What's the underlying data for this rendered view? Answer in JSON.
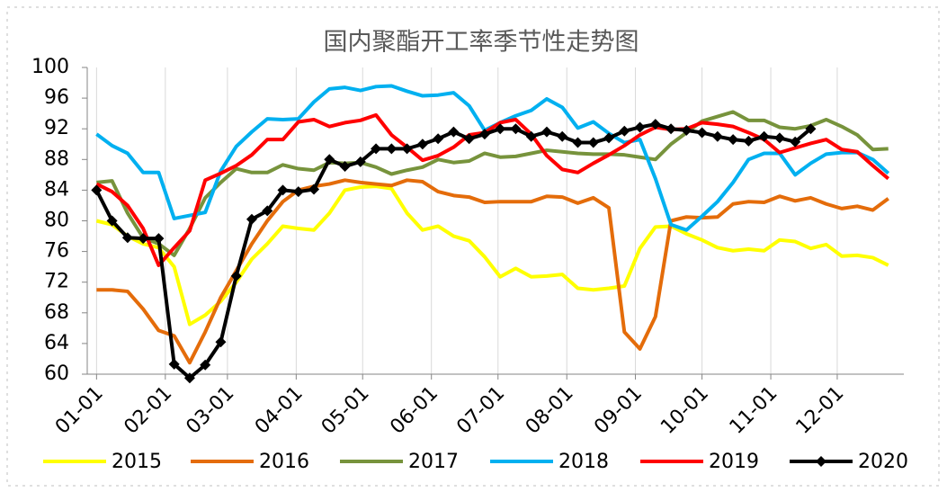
{
  "chart_data": {
    "type": "line",
    "title": "国内聚酯开工率季节性走势图",
    "x": [
      0,
      1,
      2,
      3,
      4,
      5,
      6,
      7,
      8,
      9,
      10,
      11,
      12,
      13,
      14,
      15,
      16,
      17,
      18,
      19,
      20,
      21,
      22,
      23,
      24,
      25,
      26,
      27,
      28,
      29,
      30,
      31,
      32,
      33,
      34,
      35,
      36,
      37,
      38,
      39,
      40,
      41,
      42,
      43,
      44,
      45,
      46,
      47,
      48,
      49,
      50,
      51
    ],
    "xlim": [
      -0.6,
      52
    ],
    "xticks": [
      {
        "value": 0,
        "label": "01-01"
      },
      {
        "value": 4.43,
        "label": "02-01"
      },
      {
        "value": 8.43,
        "label": "03-01"
      },
      {
        "value": 12.86,
        "label": "04-01"
      },
      {
        "value": 17.14,
        "label": "05-01"
      },
      {
        "value": 21.57,
        "label": "06-01"
      },
      {
        "value": 25.86,
        "label": "07-01"
      },
      {
        "value": 30.29,
        "label": "08-01"
      },
      {
        "value": 34.71,
        "label": "09-01"
      },
      {
        "value": 39,
        "label": "10-01"
      },
      {
        "value": 43.43,
        "label": "11-01"
      },
      {
        "value": 47.71,
        "label": "12-01"
      }
    ],
    "ylim": [
      60,
      100
    ],
    "yticks": [
      60,
      64,
      68,
      72,
      76,
      80,
      84,
      88,
      92,
      96,
      100
    ],
    "grid": "x",
    "legend": "bottom",
    "series": [
      {
        "name": "2015",
        "color": "#ffff00",
        "values": [
          80,
          79.5,
          78,
          77,
          76.5,
          74,
          66.5,
          67.7,
          69.5,
          72,
          75,
          77,
          79.3,
          79,
          78.8,
          81,
          84,
          84.4,
          84.5,
          84.2,
          81,
          78.8,
          79.3,
          78,
          77.4,
          75.3,
          72.7,
          73.8,
          72.7,
          72.8,
          73,
          71.2,
          71,
          71.2,
          71.5,
          76.4,
          79.2,
          79.3,
          78.3,
          77.5,
          76.5,
          76.1,
          76.3,
          76.1,
          77.5,
          77.3,
          76.4,
          76.9,
          75.4,
          75.5,
          75.2,
          74.2
        ]
      },
      {
        "name": "2016",
        "color": "#e46c0a",
        "values": [
          71,
          71,
          70.8,
          68.5,
          65.7,
          65,
          61.5,
          65.5,
          70,
          73.5,
          77,
          80,
          82.5,
          84,
          84.5,
          84.8,
          85.3,
          85,
          84.8,
          84.6,
          85.3,
          85.1,
          83.8,
          83.3,
          83.1,
          82.4,
          82.5,
          82.5,
          82.5,
          83.2,
          83.1,
          82.3,
          83,
          81.7,
          65.5,
          63.3,
          67.5,
          80,
          80.5,
          80.4,
          80.5,
          82.2,
          82.5,
          82.4,
          83.2,
          82.6,
          83,
          82.2,
          81.6,
          81.9,
          81.4,
          82.9
        ]
      },
      {
        "name": "2017",
        "color": "#77933c",
        "values": [
          85,
          85.2,
          81,
          77.8,
          77,
          75.5,
          79,
          83,
          85,
          86.8,
          86.3,
          86.3,
          87.3,
          86.8,
          86.6,
          87.6,
          87.5,
          87.6,
          87,
          86.1,
          86.6,
          87,
          88,
          87.6,
          87.8,
          88.8,
          88.3,
          88.4,
          88.8,
          89.2,
          89,
          88.8,
          88.7,
          88.7,
          88.6,
          88.3,
          88,
          90,
          91.5,
          93,
          93.6,
          94.2,
          93.1,
          93.1,
          92.2,
          92,
          92.4,
          93.2,
          92.3,
          91.2,
          89.3,
          89.4
        ]
      },
      {
        "name": "2018",
        "color": "#00b0f0",
        "values": [
          91.3,
          89.8,
          88.8,
          86.3,
          86.3,
          80.3,
          80.7,
          81.1,
          86.5,
          89.7,
          91.6,
          93.3,
          93.2,
          93.3,
          95.5,
          97.2,
          97.4,
          97,
          97.5,
          97.6,
          96.9,
          96.3,
          96.4,
          96.7,
          95,
          91.8,
          92.8,
          93.7,
          94.4,
          95.9,
          94.8,
          92.1,
          92.9,
          91.4,
          90.2,
          90.6,
          85.5,
          79.5,
          78.8,
          80.6,
          82.5,
          85,
          88,
          88.8,
          88.8,
          86,
          87.5,
          88.7,
          88.9,
          88.9,
          88,
          86.2
        ]
      },
      {
        "name": "2019",
        "color": "#ff0000",
        "values": [
          84.8,
          83.8,
          82,
          79,
          74.2,
          76.5,
          78.7,
          85.3,
          86.2,
          87.2,
          88.6,
          90.6,
          90.6,
          92.9,
          93.2,
          92.3,
          92.8,
          93.1,
          93.8,
          91.2,
          89.6,
          87.9,
          88.5,
          89.6,
          91.2,
          91.5,
          92.8,
          93.2,
          91.3,
          88.5,
          86.7,
          86.3,
          87.5,
          88.6,
          89.8,
          91.2,
          92.2,
          91.9,
          92,
          92.8,
          92.6,
          92.3,
          91.5,
          90.6,
          88.9,
          89.5,
          90.1,
          90.6,
          89.3,
          89,
          87.2,
          85.5
        ]
      },
      {
        "name": "2020",
        "color": "#000000",
        "marker": "diamond",
        "values": [
          84,
          80,
          77.8,
          77.7,
          77.7,
          61.3,
          59.5,
          61.2,
          64.2,
          72.8,
          80.2,
          81.3,
          84,
          83.8,
          84.1,
          88,
          87.1,
          87.7,
          89.4,
          89.4,
          89.4,
          90,
          90.7,
          91.6,
          90.7,
          91.3,
          92,
          92,
          91,
          91.6,
          91,
          90.2,
          90.2,
          90.8,
          91.7,
          92.2,
          92.6,
          92,
          91.8,
          91.5,
          91,
          90.6,
          90.4,
          91,
          90.8,
          90.3,
          92,
          null,
          null,
          null,
          null,
          null
        ]
      }
    ]
  }
}
